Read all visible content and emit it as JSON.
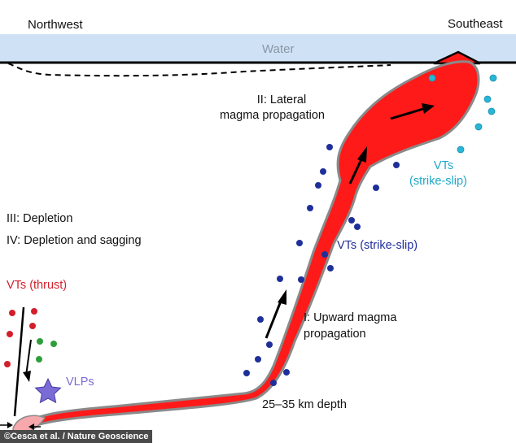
{
  "labels": {
    "northwest": "Northwest",
    "southeast": "Southeast",
    "water": "Water",
    "lateral_line1": "II: Lateral",
    "lateral_line2": "magma propagation",
    "depletion": "III: Depletion",
    "depletion_sagging": "IV: Depletion and sagging",
    "vts_thrust": "VTs (thrust)",
    "vts_strike_slip_blue": "VTs (strike-slip)",
    "vts_cyan_line1": "VTs",
    "vts_cyan_line2": "(strike-slip)",
    "upward_line1": "I: Upward magma",
    "upward_line2": "propagation",
    "vlps": "VLPs",
    "depth": "25–35 km depth",
    "credit": "©Cesca et al. / Nature Geoscience"
  },
  "colors": {
    "water": "#cfe2f5",
    "magma": "#ff1a1a",
    "magma_outline": "#8a8a8a",
    "vt_thrust": "#d21f2a",
    "vt_green": "#2e9e3a",
    "vt_strike_slip": "#1f2f9a",
    "vt_cyan": "#29b6d6",
    "vlp_star": "#7b6bd4"
  },
  "icons": {
    "arrow": "arrow-icon",
    "star": "star-icon",
    "volcano": "volcano-icon"
  }
}
